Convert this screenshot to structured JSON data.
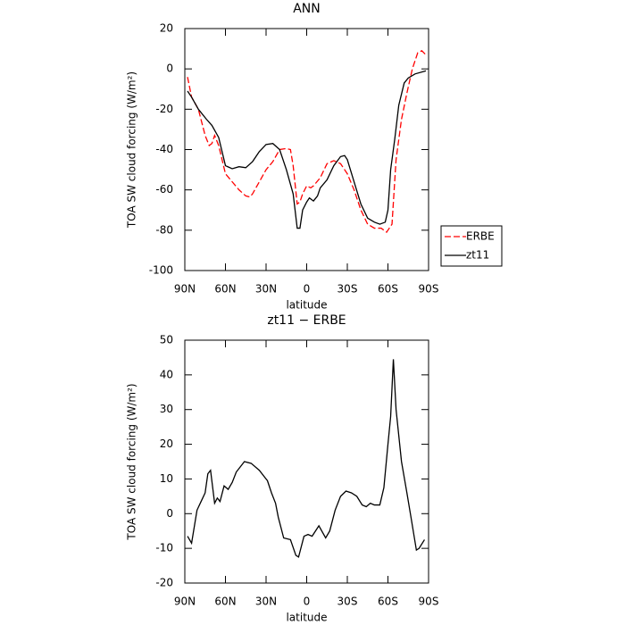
{
  "chart_data": [
    {
      "type": "line",
      "title": "ANN",
      "xlabel": "latitude",
      "ylabel": "TOA SW cloud forcing (W/m²)",
      "xlim": [
        90,
        -90
      ],
      "ylim": [
        -100,
        20
      ],
      "xticks": [
        {
          "value": 90,
          "label": "90N"
        },
        {
          "value": 60,
          "label": "60N"
        },
        {
          "value": 30,
          "label": "30N"
        },
        0,
        {
          "value": -30,
          "label": "30S"
        },
        {
          "value": -60,
          "label": "60S"
        },
        {
          "value": -90,
          "label": "90S"
        }
      ],
      "yticks": [
        -100,
        -80,
        -60,
        -40,
        -20,
        0,
        20
      ],
      "legend": "right",
      "series": [
        {
          "name": "ERBE",
          "color": "#ff0000",
          "dashed": true,
          "x": [
            88,
            85,
            80,
            75,
            72,
            70,
            68,
            65,
            60,
            55,
            50,
            45,
            42,
            40,
            35,
            30,
            25,
            20,
            15,
            12,
            10,
            7,
            5,
            3,
            0,
            -3,
            -5,
            -10,
            -15,
            -20,
            -25,
            -30,
            -35,
            -40,
            -45,
            -50,
            -55,
            -59,
            -61,
            -63,
            -66,
            -70,
            -74,
            -78,
            -82,
            -85,
            -88
          ],
          "values": [
            -4,
            -14,
            -20,
            -33,
            -38,
            -37,
            -33,
            -38,
            -52,
            -56,
            -60,
            -63,
            -63.5,
            -62,
            -56,
            -50,
            -46,
            -40,
            -39.5,
            -40,
            -48,
            -67,
            -66,
            -62,
            -58,
            -59,
            -58,
            -54,
            -47,
            -45.5,
            -47,
            -52,
            -60,
            -70,
            -77,
            -79,
            -79,
            -81,
            -79,
            -77,
            -45,
            -25,
            -12,
            0,
            8,
            9,
            7
          ]
        },
        {
          "name": "zt11",
          "color": "#000000",
          "dashed": false,
          "x": [
            88,
            85,
            80,
            74,
            70,
            65,
            60,
            55,
            50,
            45,
            40,
            35,
            30,
            25,
            20,
            15,
            10,
            7,
            5,
            3,
            0,
            -2,
            -5,
            -8,
            -10,
            -15,
            -20,
            -25,
            -28,
            -30,
            -35,
            -40,
            -45,
            -50,
            -54,
            -58,
            -60,
            -62,
            -65,
            -68,
            -72,
            -75,
            -80,
            -88
          ],
          "values": [
            -11,
            -14,
            -20,
            -25,
            -28,
            -34,
            -48,
            -49.5,
            -48.5,
            -49,
            -46,
            -41,
            -37.5,
            -37,
            -40,
            -50,
            -62,
            -79,
            -79,
            -70,
            -66,
            -64,
            -65.5,
            -63,
            -59,
            -55,
            -48,
            -43.5,
            -43,
            -45,
            -56,
            -67,
            -74,
            -76,
            -77,
            -76,
            -70,
            -50,
            -35,
            -18,
            -7,
            -4.5,
            -2.5,
            -1
          ]
        }
      ]
    },
    {
      "type": "line",
      "title": "zt11 − ERBE",
      "xlabel": "latitude",
      "ylabel": "TOA SW cloud forcing (W/m²)",
      "xlim": [
        90,
        -90
      ],
      "ylim": [
        -20,
        50
      ],
      "xticks": [
        {
          "value": 90,
          "label": "90N"
        },
        {
          "value": 60,
          "label": "60N"
        },
        {
          "value": 30,
          "label": "30N"
        },
        0,
        {
          "value": -30,
          "label": "30S"
        },
        {
          "value": -60,
          "label": "60S"
        },
        {
          "value": -90,
          "label": "90S"
        }
      ],
      "yticks": [
        -20,
        -10,
        0,
        10,
        20,
        30,
        40,
        50
      ],
      "series": [
        {
          "color": "#000000",
          "dashed": false,
          "x": [
            88,
            85,
            81,
            78,
            75,
            73,
            71,
            68,
            66,
            64,
            61,
            58,
            55,
            52,
            46,
            41,
            35,
            31,
            29,
            26,
            23,
            21,
            17,
            12,
            8,
            6,
            2,
            -1,
            -4,
            -9,
            -14,
            -17,
            -21,
            -25,
            -29,
            -33,
            -37,
            -41,
            -44,
            -47,
            -50,
            -54,
            -57,
            -60,
            -62,
            -64,
            -66,
            -70,
            -74,
            -77,
            -81,
            -83,
            -87
          ],
          "values": [
            -6.5,
            -8.5,
            1,
            3.5,
            6,
            11.5,
            12.5,
            3,
            4.5,
            3.5,
            8,
            7,
            9,
            12,
            15,
            14.5,
            12.5,
            10.5,
            9.5,
            6,
            3,
            -1,
            -7,
            -7.5,
            -12,
            -12.5,
            -6.5,
            -6,
            -6.5,
            -3.5,
            -7,
            -5,
            1,
            5,
            6.5,
            6,
            5,
            2.5,
            2,
            3,
            2.5,
            2.5,
            7.5,
            20,
            28,
            44.5,
            30,
            15,
            6,
            -1,
            -10.5,
            -10,
            -7.5
          ]
        }
      ]
    }
  ]
}
